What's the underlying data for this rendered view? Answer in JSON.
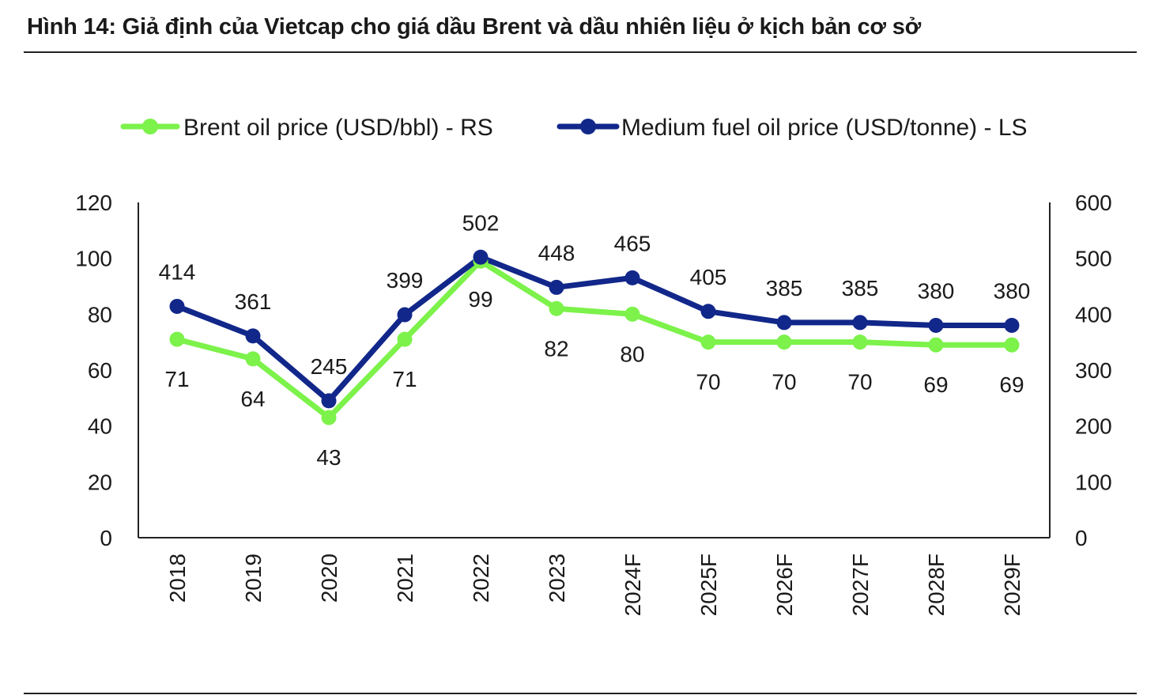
{
  "title": "Hình 14: Giả định của Vietcap cho giá dầu Brent và dầu nhiên liệu ở kịch bản cơ sở",
  "chart_data": {
    "type": "line",
    "categories": [
      "2018",
      "2019",
      "2020",
      "2021",
      "2022",
      "2023",
      "2024F",
      "2025F",
      "2026F",
      "2027F",
      "2028F",
      "2029F"
    ],
    "series": [
      {
        "name": "Brent oil price (USD/bbl) - RS",
        "axis": "left",
        "color": "#7CF24A",
        "values": [
          71,
          64,
          43,
          71,
          99,
          82,
          80,
          70,
          70,
          70,
          69,
          69
        ]
      },
      {
        "name": "Medium fuel oil price (USD/tonne) - LS",
        "axis": "right",
        "color": "#12278A",
        "values": [
          414,
          361,
          245,
          399,
          502,
          448,
          465,
          405,
          385,
          385,
          380,
          380
        ]
      }
    ],
    "left_axis": {
      "ylim": [
        0,
        120
      ],
      "ticks": [
        "0",
        "20",
        "40",
        "60",
        "80",
        "100",
        "120"
      ]
    },
    "right_axis": {
      "ylim": [
        0,
        600
      ],
      "ticks": [
        "0",
        "100",
        "200",
        "300",
        "400",
        "500",
        "600"
      ]
    },
    "legend_position": "top",
    "grid": false
  }
}
